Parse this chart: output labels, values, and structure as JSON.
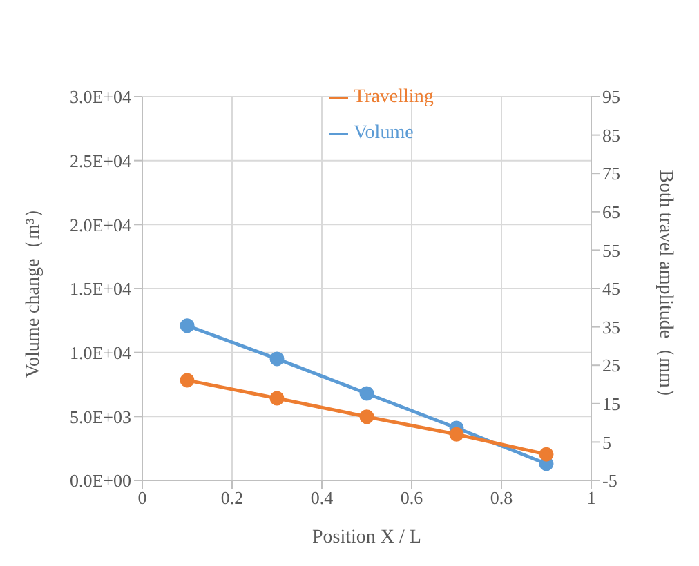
{
  "chart_data": {
    "type": "line",
    "xlabel": "Position X / L",
    "ylabel": "Volume change（m³）",
    "y2label": "Both travel amplitude（mm）",
    "x": [
      0.1,
      0.3,
      0.5,
      0.7,
      0.9
    ],
    "series": [
      {
        "name": "Volume",
        "color": "#5b9bd5",
        "values": [
          12100,
          9500,
          6800,
          4100,
          1300
        ]
      },
      {
        "name": "Travelling",
        "color": "#ed7d31",
        "values": [
          21.1,
          16.4,
          11.6,
          7,
          1.8
        ],
        "axis": "y2"
      }
    ],
    "xlim": [
      0,
      1
    ],
    "xticks": [
      0,
      0.2,
      0.4,
      0.6,
      0.8,
      1
    ],
    "ylim": [
      0,
      30000
    ],
    "yticks": [
      {
        "value": 0,
        "label": "0.0E+00"
      },
      {
        "value": 5000,
        "label": "5.0E+03"
      },
      {
        "value": 10000,
        "label": "1.0E+04"
      },
      {
        "value": 15000,
        "label": "1.5E+04"
      },
      {
        "value": 20000,
        "label": "2.0E+04"
      },
      {
        "value": 25000,
        "label": "2.5E+04"
      },
      {
        "value": 30000,
        "label": "3.0E+04"
      }
    ],
    "y2lim": [
      -5,
      95
    ],
    "y2ticks": [
      -5,
      5,
      15,
      25,
      35,
      45,
      55,
      65,
      75,
      85,
      95
    ],
    "grid": true,
    "legend": "top",
    "marker": "circle",
    "line_style": "solid"
  }
}
